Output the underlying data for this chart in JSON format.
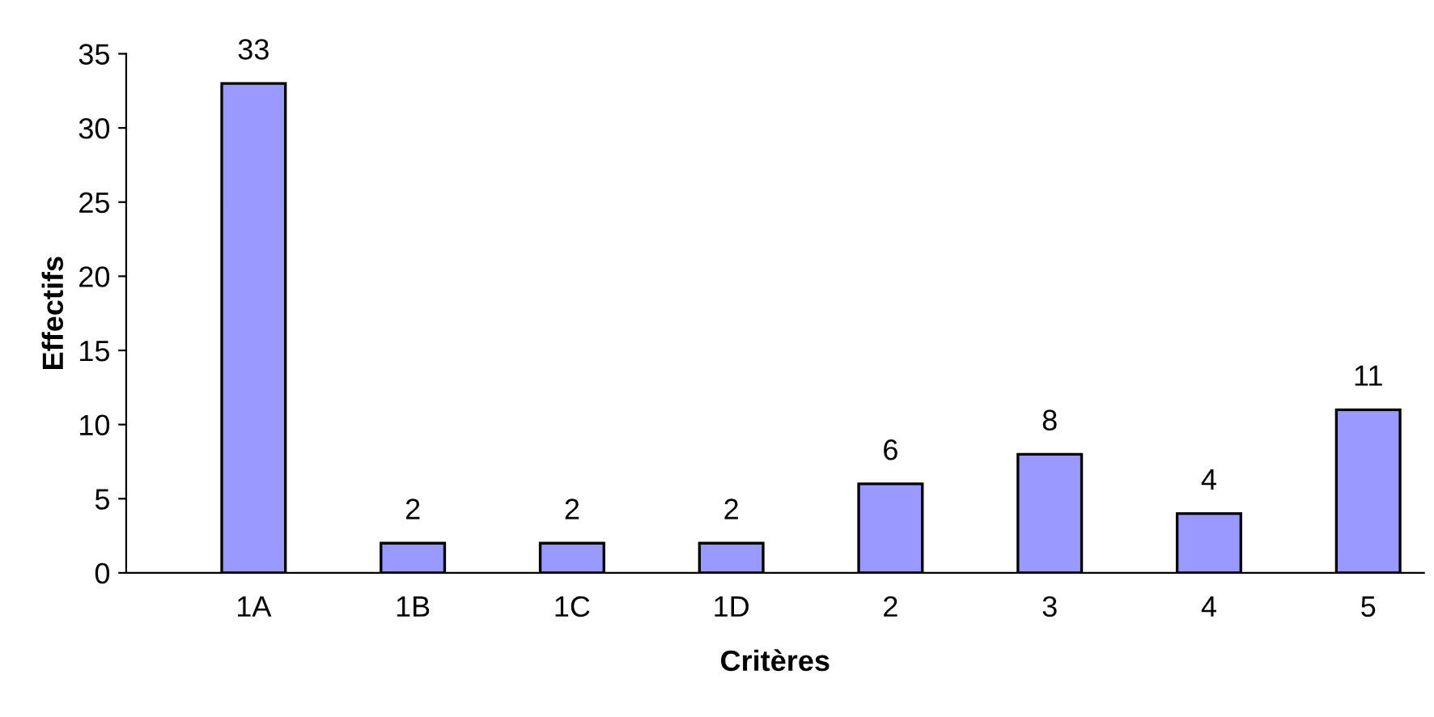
{
  "chart_data": {
    "type": "bar",
    "xlabel": "Critères",
    "ylabel": "Effectifs",
    "categories": [
      "1A",
      "1B",
      "1C",
      "1D",
      "2",
      "3",
      "4",
      "5"
    ],
    "values": [
      33,
      2,
      2,
      2,
      6,
      8,
      4,
      11
    ],
    "color": "#9999ff",
    "ylim": [
      0,
      35
    ],
    "yticks": [
      0,
      5,
      10,
      15,
      20,
      25,
      30,
      35
    ],
    "data_labels": true,
    "grid": false,
    "legend": false
  }
}
